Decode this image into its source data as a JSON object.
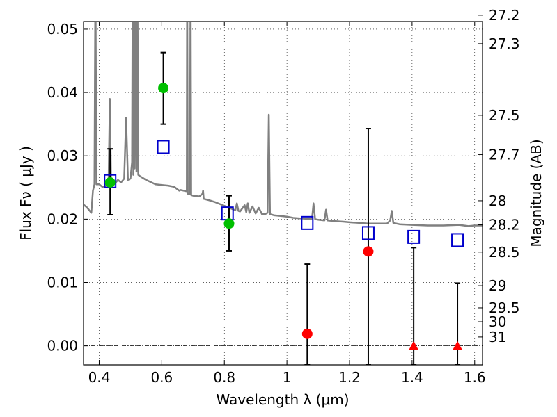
{
  "chart_data": {
    "type": "scatter",
    "xlabel": "Wavelength  λ (μm)",
    "ylabel": "Flux  Fν  ( μJy )",
    "ylabel_right": "Magnitude (AB)",
    "xlim": [
      0.35,
      1.625
    ],
    "ylim": [
      -0.003,
      0.0512
    ],
    "xticks": [
      0.4,
      0.6,
      0.8,
      1.0,
      1.2,
      1.4,
      1.6
    ],
    "xtick_labels": [
      "0.4",
      "0.6",
      "0.8",
      "1",
      "1.2",
      "1.4",
      "1.6"
    ],
    "yticks": [
      0.0,
      0.01,
      0.02,
      0.03,
      0.04,
      0.05
    ],
    "ytick_labels": [
      "0.00",
      "0.01",
      "0.02",
      "0.03",
      "0.04",
      "0.05"
    ],
    "magnitude_ticks": [
      {
        "flux": 0.0522,
        "label": "27.2"
      },
      {
        "flux": 0.0477,
        "label": "27.3"
      },
      {
        "flux": 0.0364,
        "label": "27.5"
      },
      {
        "flux": 0.0302,
        "label": "27.7"
      },
      {
        "flux": 0.0229,
        "label": "28"
      },
      {
        "flux": 0.0191,
        "label": "28.2"
      },
      {
        "flux": 0.0148,
        "label": "28.5"
      },
      {
        "flux": 0.0095,
        "label": "29"
      },
      {
        "flux": 0.006,
        "label": "29.5"
      },
      {
        "flux": 0.0038,
        "label": "30"
      },
      {
        "flux": 0.0014,
        "label": "31"
      }
    ],
    "grid": true,
    "model_color": "#808080",
    "model_spectrum": [
      [
        0.35,
        0.0223
      ],
      [
        0.36,
        0.0219
      ],
      [
        0.37,
        0.0213
      ],
      [
        0.375,
        0.021
      ],
      [
        0.38,
        0.0245
      ],
      [
        0.385,
        0.0255
      ],
      [
        0.388,
        0.06
      ],
      [
        0.391,
        0.0255
      ],
      [
        0.4,
        0.0255
      ],
      [
        0.41,
        0.0251
      ],
      [
        0.42,
        0.0252
      ],
      [
        0.425,
        0.026
      ],
      [
        0.43,
        0.026
      ],
      [
        0.434,
        0.039
      ],
      [
        0.438,
        0.0258
      ],
      [
        0.45,
        0.0256
      ],
      [
        0.46,
        0.0262
      ],
      [
        0.47,
        0.0258
      ],
      [
        0.48,
        0.0264
      ],
      [
        0.486,
        0.036
      ],
      [
        0.492,
        0.0262
      ],
      [
        0.5,
        0.0264
      ],
      [
        0.505,
        0.029
      ],
      [
        0.507,
        0.06
      ],
      [
        0.509,
        0.027
      ],
      [
        0.511,
        0.06
      ],
      [
        0.513,
        0.028
      ],
      [
        0.516,
        0.06
      ],
      [
        0.519,
        0.0275
      ],
      [
        0.522,
        0.06
      ],
      [
        0.525,
        0.027
      ],
      [
        0.53,
        0.0268
      ],
      [
        0.55,
        0.0262
      ],
      [
        0.58,
        0.0255
      ],
      [
        0.6,
        0.0254
      ],
      [
        0.62,
        0.0253
      ],
      [
        0.64,
        0.0251
      ],
      [
        0.656,
        0.0245
      ],
      [
        0.66,
        0.0246
      ],
      [
        0.68,
        0.0244
      ],
      [
        0.681,
        0.06
      ],
      [
        0.683,
        0.024
      ],
      [
        0.69,
        0.024
      ],
      [
        0.692,
        0.06
      ],
      [
        0.694,
        0.0238
      ],
      [
        0.7,
        0.0237
      ],
      [
        0.72,
        0.0236
      ],
      [
        0.73,
        0.024
      ],
      [
        0.732,
        0.0245
      ],
      [
        0.734,
        0.0232
      ],
      [
        0.75,
        0.023
      ],
      [
        0.77,
        0.0227
      ],
      [
        0.79,
        0.0223
      ],
      [
        0.8,
        0.0221
      ],
      [
        0.81,
        0.0219
      ],
      [
        0.82,
        0.0217
      ],
      [
        0.835,
        0.0214
      ],
      [
        0.84,
        0.0225
      ],
      [
        0.845,
        0.0213
      ],
      [
        0.85,
        0.0212
      ],
      [
        0.865,
        0.0222
      ],
      [
        0.87,
        0.0211
      ],
      [
        0.875,
        0.0225
      ],
      [
        0.88,
        0.021
      ],
      [
        0.89,
        0.022
      ],
      [
        0.9,
        0.0209
      ],
      [
        0.91,
        0.0218
      ],
      [
        0.92,
        0.0208
      ],
      [
        0.93,
        0.0208
      ],
      [
        0.938,
        0.021
      ],
      [
        0.942,
        0.0365
      ],
      [
        0.946,
        0.0208
      ],
      [
        0.96,
        0.0206
      ],
      [
        0.98,
        0.0205
      ],
      [
        1.0,
        0.0204
      ],
      [
        1.02,
        0.0202
      ],
      [
        1.05,
        0.0201
      ],
      [
        1.08,
        0.02
      ],
      [
        1.085,
        0.0225
      ],
      [
        1.09,
        0.02
      ],
      [
        1.1,
        0.0199
      ],
      [
        1.12,
        0.0198
      ],
      [
        1.125,
        0.0215
      ],
      [
        1.13,
        0.0198
      ],
      [
        1.15,
        0.0197
      ],
      [
        1.18,
        0.0196
      ],
      [
        1.2,
        0.0195
      ],
      [
        1.23,
        0.0194
      ],
      [
        1.26,
        0.0193
      ],
      [
        1.28,
        0.0193
      ],
      [
        1.3,
        0.0193
      ],
      [
        1.32,
        0.0193
      ],
      [
        1.33,
        0.0198
      ],
      [
        1.335,
        0.0213
      ],
      [
        1.34,
        0.0194
      ],
      [
        1.36,
        0.0192
      ],
      [
        1.4,
        0.0191
      ],
      [
        1.45,
        0.019
      ],
      [
        1.5,
        0.019
      ],
      [
        1.55,
        0.0191
      ],
      [
        1.58,
        0.0189
      ],
      [
        1.6,
        0.019
      ],
      [
        1.625,
        0.019
      ]
    ],
    "series": [
      {
        "marker": "square-open",
        "color": "#0000cc",
        "points": [
          {
            "x": 0.435,
            "y": 0.026
          },
          {
            "x": 0.605,
            "y": 0.0314
          },
          {
            "x": 0.81,
            "y": 0.0209
          },
          {
            "x": 1.065,
            "y": 0.0194
          },
          {
            "x": 1.26,
            "y": 0.0178
          },
          {
            "x": 1.405,
            "y": 0.0172
          },
          {
            "x": 1.545,
            "y": 0.0167
          }
        ]
      },
      {
        "marker": "circle",
        "color": "#00bf00",
        "points": [
          {
            "x": 0.435,
            "y": 0.0258,
            "yerr": [
              0.0051,
              0.0053
            ]
          },
          {
            "x": 0.605,
            "y": 0.0407,
            "yerr": [
              0.0057,
              0.0056
            ]
          },
          {
            "x": 0.815,
            "y": 0.0193,
            "yerr": [
              0.0043,
              0.0044
            ]
          }
        ]
      },
      {
        "marker": "circle",
        "color": "#ff0000",
        "points": [
          {
            "x": 1.065,
            "y": 0.0019,
            "yerr": [
              0.0049,
              0.011
            ]
          },
          {
            "x": 1.26,
            "y": 0.0149,
            "yerr": [
              0.0179,
              0.0194
            ]
          }
        ]
      },
      {
        "marker": "triangle",
        "color": "#ff0000",
        "points": [
          {
            "x": 1.405,
            "y": 0.0,
            "yerr": [
              0.003,
              0.0155
            ]
          },
          {
            "x": 1.545,
            "y": 0.0,
            "yerr": [
              0.003,
              0.0099
            ]
          }
        ]
      }
    ]
  }
}
